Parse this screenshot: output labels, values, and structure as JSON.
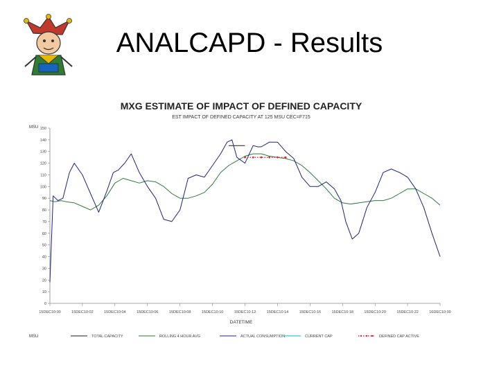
{
  "slide": {
    "title": "ANALCAPD - Results"
  },
  "logo": {
    "name": "jester-mascot-logo"
  },
  "chart_data": {
    "type": "line",
    "title": "MXG ESTIMATE OF IMPACT OF DEFINED CAPACITY",
    "subtitle": "EST IMPACT OF DEFINED CAPACITY AT 125 MSU CEC=F715",
    "xlabel": "DATETIME",
    "ylabel": "MSU",
    "ylim": [
      0,
      150
    ],
    "yticks": [
      0,
      10,
      20,
      30,
      40,
      50,
      60,
      70,
      80,
      90,
      100,
      110,
      120,
      130,
      140,
      150
    ],
    "xlim": [
      0,
      24
    ],
    "xtick_labels": [
      "15DEC10:00",
      "15DEC10:02",
      "15DEC10:04",
      "15DEC10:06",
      "15DEC10:08",
      "15DEC10:10",
      "15DEC10:12",
      "15DEC10:14",
      "15DEC10:16",
      "15DEC10:18",
      "15DEC10:20",
      "15DEC10:22",
      "16DEC10:00"
    ],
    "legend_position": "bottom",
    "legend_title": "MSU",
    "series": [
      {
        "name": "TOTAL CAPACITY",
        "color": "#1a1a1a",
        "dash": "solid",
        "x": [
          11.0,
          12.0
        ],
        "y": [
          135,
          135
        ]
      },
      {
        "name": "ROLLING 4 HOUR AVG",
        "color": "#2a7a3a",
        "dash": "solid",
        "x": [
          0.0,
          0.3,
          0.7,
          1.0,
          1.5,
          2.0,
          2.5,
          3.0,
          3.5,
          4.0,
          4.5,
          5.0,
          5.5,
          6.0,
          6.5,
          7.0,
          7.5,
          8.0,
          8.5,
          9.0,
          9.5,
          10.0,
          10.5,
          11.0,
          11.5,
          12.0,
          12.5,
          13.0,
          13.5,
          14.0,
          14.5,
          15.0,
          15.5,
          16.0,
          16.5,
          17.0,
          17.5,
          18.0,
          18.5,
          19.0,
          19.5,
          20.0,
          20.5,
          21.0,
          21.5,
          22.0,
          22.5,
          23.0,
          23.5,
          24.0
        ],
        "y": [
          88,
          87,
          88,
          87,
          86,
          83,
          80,
          84,
          92,
          103,
          107,
          105,
          103,
          105,
          104,
          100,
          94,
          90,
          90,
          92,
          95,
          102,
          112,
          118,
          122,
          126,
          128,
          128,
          126,
          125,
          124,
          122,
          118,
          112,
          105,
          98,
          90,
          86,
          85,
          86,
          87,
          88,
          88,
          90,
          94,
          98,
          98,
          94,
          90,
          84
        ]
      },
      {
        "name": "ACTUAL CONSUMPTION",
        "color": "#1a237e",
        "dash": "solid",
        "x": [
          0.0,
          0.2,
          0.5,
          0.8,
          1.2,
          1.5,
          2.0,
          2.5,
          3.0,
          3.5,
          3.9,
          4.2,
          4.6,
          5.0,
          5.5,
          6.0,
          6.5,
          7.0,
          7.5,
          8.0,
          8.5,
          9.0,
          9.5,
          10.0,
          10.5,
          10.9,
          11.2,
          11.5,
          12.0,
          12.5,
          12.8,
          13.0,
          13.5,
          14.0,
          14.5,
          15.0,
          15.5,
          16.0,
          16.5,
          17.0,
          17.5,
          17.9,
          18.2,
          18.6,
          19.0,
          19.5,
          20.0,
          20.5,
          21.0,
          21.5,
          22.0,
          22.5,
          23.0,
          23.5,
          24.0
        ],
        "y": [
          18,
          92,
          88,
          90,
          112,
          120,
          110,
          94,
          78,
          96,
          112,
          114,
          120,
          128,
          112,
          100,
          90,
          72,
          70,
          80,
          107,
          110,
          108,
          118,
          128,
          138,
          140,
          125,
          120,
          135,
          134,
          134,
          138,
          138,
          130,
          124,
          108,
          100,
          100,
          104,
          98,
          88,
          70,
          55,
          60,
          82,
          95,
          112,
          115,
          112,
          108,
          98,
          82,
          60,
          40
        ]
      },
      {
        "name": "CURRENT CAP",
        "color": "#00bcd4",
        "dash": "solid",
        "x": [],
        "y": []
      },
      {
        "name": "DEFINED CAP ACTIVE",
        "color": "#d32f2f",
        "dash": "dotted",
        "x": [
          12.0,
          12.5,
          13.0,
          13.5,
          14.0,
          14.5
        ],
        "y": [
          125,
          125,
          125,
          125,
          125,
          125
        ]
      }
    ]
  }
}
